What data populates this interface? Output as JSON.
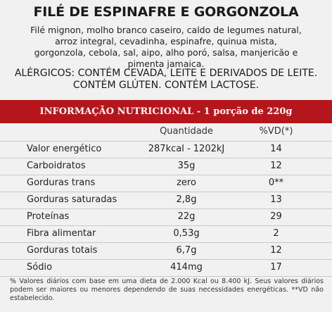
{
  "title": "FILÉ DE ESPINAFRE E GORGONZOLA",
  "ingredients": "Filé mignon, molho branco caseiro, caldo de legumes natural, arroz integral, cevadinha, espinafre, quinua mista, gorgonzola, cebola, sal, aipo, alho poró, salsa, manjericão e pimenta jamaica.",
  "allergens": "ALÉRGICOS: CONTÉM CEVADA, LEITE E DERIVADOS DE LEITE. CONTÉM GLÚTEN. CONTÉM LACTOSE.",
  "nutrition": {
    "banner": "INFORMAÇÃO NUTRICIONAL - 1 porção de 220g",
    "headers": {
      "quantity": "Quantidade",
      "vd": "%VD(*)"
    },
    "rows": [
      {
        "nutrient": "Valor energético",
        "quantity": "287kcal - 1202kJ",
        "vd": "14"
      },
      {
        "nutrient": "Carboidratos",
        "quantity": "35g",
        "vd": "12"
      },
      {
        "nutrient": "Gorduras trans",
        "quantity": "zero",
        "vd": "0**"
      },
      {
        "nutrient": "Gorduras saturadas",
        "quantity": "2,8g",
        "vd": "13"
      },
      {
        "nutrient": "Proteínas",
        "quantity": "22g",
        "vd": "29"
      },
      {
        "nutrient": "Fibra alimentar",
        "quantity": "0,53g",
        "vd": "2"
      },
      {
        "nutrient": "Gorduras totais",
        "quantity": "6,7g",
        "vd": "12"
      },
      {
        "nutrient": "Sódio",
        "quantity": "414mg",
        "vd": "17"
      }
    ],
    "footnote": "% Valores diários com base em uma dieta de 2.000 Kcal ou 8.400 kJ. Seus valores diários podem ser maiores ou menores dependendo de suas necessidades energéticas. **VD não estabelecido."
  },
  "colors": {
    "banner_bg": "#b5161c",
    "banner_text": "#ffffff",
    "background": "#f1f1f1"
  }
}
